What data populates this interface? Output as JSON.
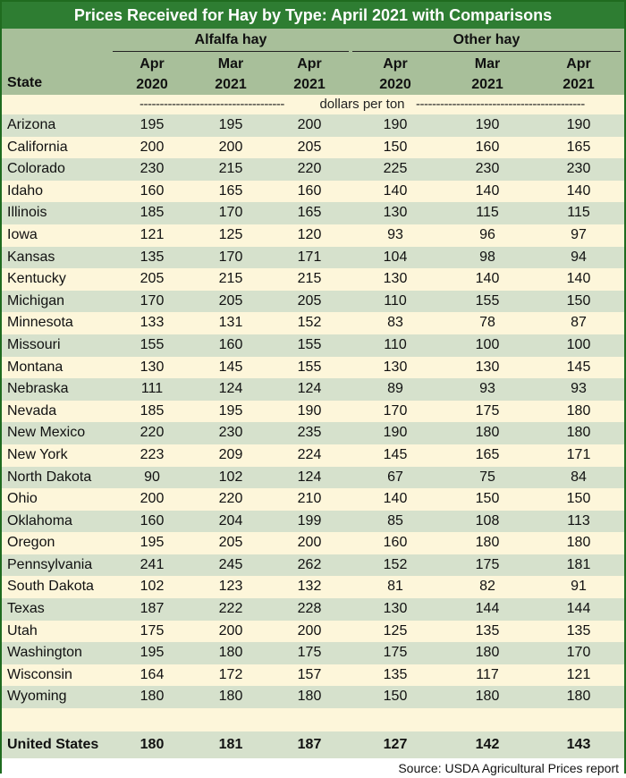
{
  "title": "Prices Received for Hay by Type: April 2021 with Comparisons",
  "groups": {
    "alfalfa": "Alfalfa hay",
    "other": "Other hay"
  },
  "columns": [
    {
      "line1": "Apr",
      "line2": "2020"
    },
    {
      "line1": "Mar",
      "line2": "2021"
    },
    {
      "line1": "Apr",
      "line2": "2021"
    },
    {
      "line1": "Apr",
      "line2": "2020"
    },
    {
      "line1": "Mar",
      "line2": "2021"
    },
    {
      "line1": "Apr",
      "line2": "2021"
    }
  ],
  "state_header": "State",
  "units_label": "dollars per ton",
  "units_dashes_left": "------------------------------------",
  "units_dashes_right": "------------------------------------------",
  "rows": [
    {
      "state": "Arizona",
      "values": [
        "195",
        "195",
        "200",
        "190",
        "190",
        "190"
      ]
    },
    {
      "state": "California",
      "values": [
        "200",
        "200",
        "205",
        "150",
        "160",
        "165"
      ]
    },
    {
      "state": "Colorado",
      "values": [
        "230",
        "215",
        "220",
        "225",
        "230",
        "230"
      ]
    },
    {
      "state": "Idaho",
      "values": [
        "160",
        "165",
        "160",
        "140",
        "140",
        "140"
      ]
    },
    {
      "state": "Illinois",
      "values": [
        "185",
        "170",
        "165",
        "130",
        "115",
        "115"
      ]
    },
    {
      "state": "Iowa",
      "values": [
        "121",
        "125",
        "120",
        "93",
        "96",
        "97"
      ]
    },
    {
      "state": "Kansas",
      "values": [
        "135",
        "170",
        "171",
        "104",
        "98",
        "94"
      ]
    },
    {
      "state": "Kentucky",
      "values": [
        "205",
        "215",
        "215",
        "130",
        "140",
        "140"
      ]
    },
    {
      "state": "Michigan",
      "values": [
        "170",
        "205",
        "205",
        "110",
        "155",
        "150"
      ]
    },
    {
      "state": "Minnesota",
      "values": [
        "133",
        "131",
        "152",
        "83",
        "78",
        "87"
      ]
    },
    {
      "state": "Missouri",
      "values": [
        "155",
        "160",
        "155",
        "110",
        "100",
        "100"
      ]
    },
    {
      "state": "Montana",
      "values": [
        "130",
        "145",
        "155",
        "130",
        "130",
        "145"
      ]
    },
    {
      "state": "Nebraska",
      "values": [
        "111",
        "124",
        "124",
        "89",
        "93",
        "93"
      ]
    },
    {
      "state": "Nevada",
      "values": [
        "185",
        "195",
        "190",
        "170",
        "175",
        "180"
      ]
    },
    {
      "state": "New Mexico",
      "values": [
        "220",
        "230",
        "235",
        "190",
        "180",
        "180"
      ]
    },
    {
      "state": "New York",
      "values": [
        "223",
        "209",
        "224",
        "145",
        "165",
        "171"
      ]
    },
    {
      "state": "North Dakota",
      "values": [
        "90",
        "102",
        "124",
        "67",
        "75",
        "84"
      ]
    },
    {
      "state": "Ohio",
      "values": [
        "200",
        "220",
        "210",
        "140",
        "150",
        "150"
      ]
    },
    {
      "state": "Oklahoma",
      "values": [
        "160",
        "204",
        "199",
        "85",
        "108",
        "113"
      ]
    },
    {
      "state": "Oregon",
      "values": [
        "195",
        "205",
        "200",
        "160",
        "180",
        "180"
      ]
    },
    {
      "state": "Pennsylvania",
      "values": [
        "241",
        "245",
        "262",
        "152",
        "175",
        "181"
      ]
    },
    {
      "state": "South Dakota",
      "values": [
        "102",
        "123",
        "132",
        "81",
        "82",
        "91"
      ]
    },
    {
      "state": "Texas",
      "values": [
        "187",
        "222",
        "228",
        "130",
        "144",
        "144"
      ]
    },
    {
      "state": "Utah",
      "values": [
        "175",
        "200",
        "200",
        "125",
        "135",
        "135"
      ]
    },
    {
      "state": "Washington",
      "values": [
        "195",
        "180",
        "175",
        "175",
        "180",
        "170"
      ]
    },
    {
      "state": "Wisconsin",
      "values": [
        "164",
        "172",
        "157",
        "135",
        "117",
        "121"
      ]
    },
    {
      "state": "Wyoming",
      "values": [
        "180",
        "180",
        "180",
        "150",
        "180",
        "180"
      ]
    }
  ],
  "total": {
    "state": "United States",
    "values": [
      "180",
      "181",
      "187",
      "127",
      "142",
      "143"
    ]
  },
  "source": "Source: USDA Agricultural Prices report",
  "colors": {
    "title_bg": "#2e7d32",
    "header_bg": "#a8bf9a",
    "row_green": "#d6e1cc",
    "row_cream": "#fdf6da"
  }
}
